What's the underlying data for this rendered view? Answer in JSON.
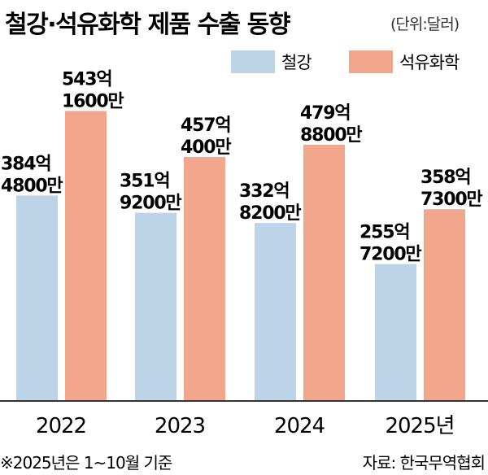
{
  "header": {
    "title": "철강·석유화학 제품 수출 동향",
    "unit": "(단위:달러)"
  },
  "footer": {
    "note": "※2025년은 1~10월 기준",
    "source": "자료: 한국무역협회"
  },
  "colors": {
    "steel": "#bcd3e8",
    "petrochem": "#f2a78d",
    "axis": "#333333",
    "text": "#1e1e1e"
  },
  "chart_data": {
    "type": "bar",
    "title": "철강·석유화학 제품 수출 동향",
    "unit": "(단위:달러)",
    "categories": [
      "2022",
      "2023",
      "2024",
      "2025년"
    ],
    "legend_position": "top-right",
    "grid": false,
    "ylim": [
      0,
      600
    ],
    "series": [
      {
        "name": "철강",
        "values": [
          384.48,
          351.92,
          332.82,
          255.72
        ],
        "labels": [
          [
            "384억",
            "4800만"
          ],
          [
            "351억",
            "9200만"
          ],
          [
            "332억",
            "8200만"
          ],
          [
            "255억",
            "7200만"
          ]
        ]
      },
      {
        "name": "석유화학",
        "values": [
          543.16,
          457.04,
          479.88,
          358.73
        ],
        "labels": [
          [
            "543억",
            "1600만"
          ],
          [
            "457억",
            "400만"
          ],
          [
            "479억",
            "8800만"
          ],
          [
            "358억",
            "7300만"
          ]
        ]
      }
    ]
  }
}
